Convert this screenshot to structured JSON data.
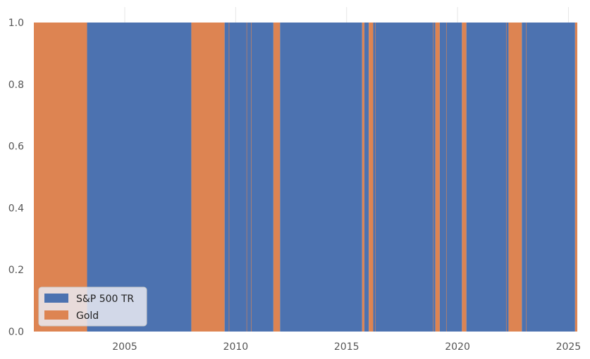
{
  "chart_data": {
    "type": "area",
    "title": "",
    "xlabel": "",
    "ylabel": "",
    "xlim": [
      2000.9,
      2025.4
    ],
    "ylim": [
      0,
      1.0
    ],
    "x_ticks": [
      2005,
      2010,
      2015,
      2020,
      2025
    ],
    "y_ticks": [
      0.0,
      0.2,
      0.4,
      0.6,
      0.8,
      1.0
    ],
    "y_tick_labels": [
      "0.0",
      "0.2",
      "0.4",
      "0.6",
      "0.8",
      "1.0"
    ],
    "grid": true,
    "legend_placement": "lower-left",
    "legend_title": "",
    "series": [
      {
        "name": "S&P 500 TR",
        "color": "#4c72b0"
      },
      {
        "name": "Gold",
        "color": "#dd8452"
      }
    ],
    "periods": [
      {
        "start": 2000.9,
        "end": 2003.3,
        "asset": "Gold"
      },
      {
        "start": 2003.3,
        "end": 2008.0,
        "asset": "S&P 500 TR"
      },
      {
        "start": 2008.0,
        "end": 2009.5,
        "asset": "Gold"
      },
      {
        "start": 2009.5,
        "end": 2011.7,
        "asset": "S&P 500 TR"
      },
      {
        "start": 2011.7,
        "end": 2012.0,
        "asset": "Gold"
      },
      {
        "start": 2012.0,
        "end": 2015.7,
        "asset": "S&P 500 TR"
      },
      {
        "start": 2015.7,
        "end": 2015.8,
        "asset": "Gold"
      },
      {
        "start": 2015.8,
        "end": 2016.0,
        "asset": "S&P 500 TR"
      },
      {
        "start": 2016.0,
        "end": 2016.2,
        "asset": "Gold"
      },
      {
        "start": 2016.2,
        "end": 2019.0,
        "asset": "S&P 500 TR"
      },
      {
        "start": 2019.0,
        "end": 2019.2,
        "asset": "Gold"
      },
      {
        "start": 2019.2,
        "end": 2020.2,
        "asset": "S&P 500 TR"
      },
      {
        "start": 2020.2,
        "end": 2020.4,
        "asset": "Gold"
      },
      {
        "start": 2020.4,
        "end": 2022.3,
        "asset": "S&P 500 TR"
      },
      {
        "start": 2022.3,
        "end": 2022.9,
        "asset": "Gold"
      },
      {
        "start": 2022.9,
        "end": 2025.3,
        "asset": "S&P 500 TR"
      },
      {
        "start": 2025.3,
        "end": 2025.4,
        "asset": "Gold"
      }
    ],
    "thin_switches": [
      2009.7,
      2010.5,
      2010.7,
      2016.3,
      2018.9,
      2019.5,
      2022.2,
      2023.1
    ]
  }
}
